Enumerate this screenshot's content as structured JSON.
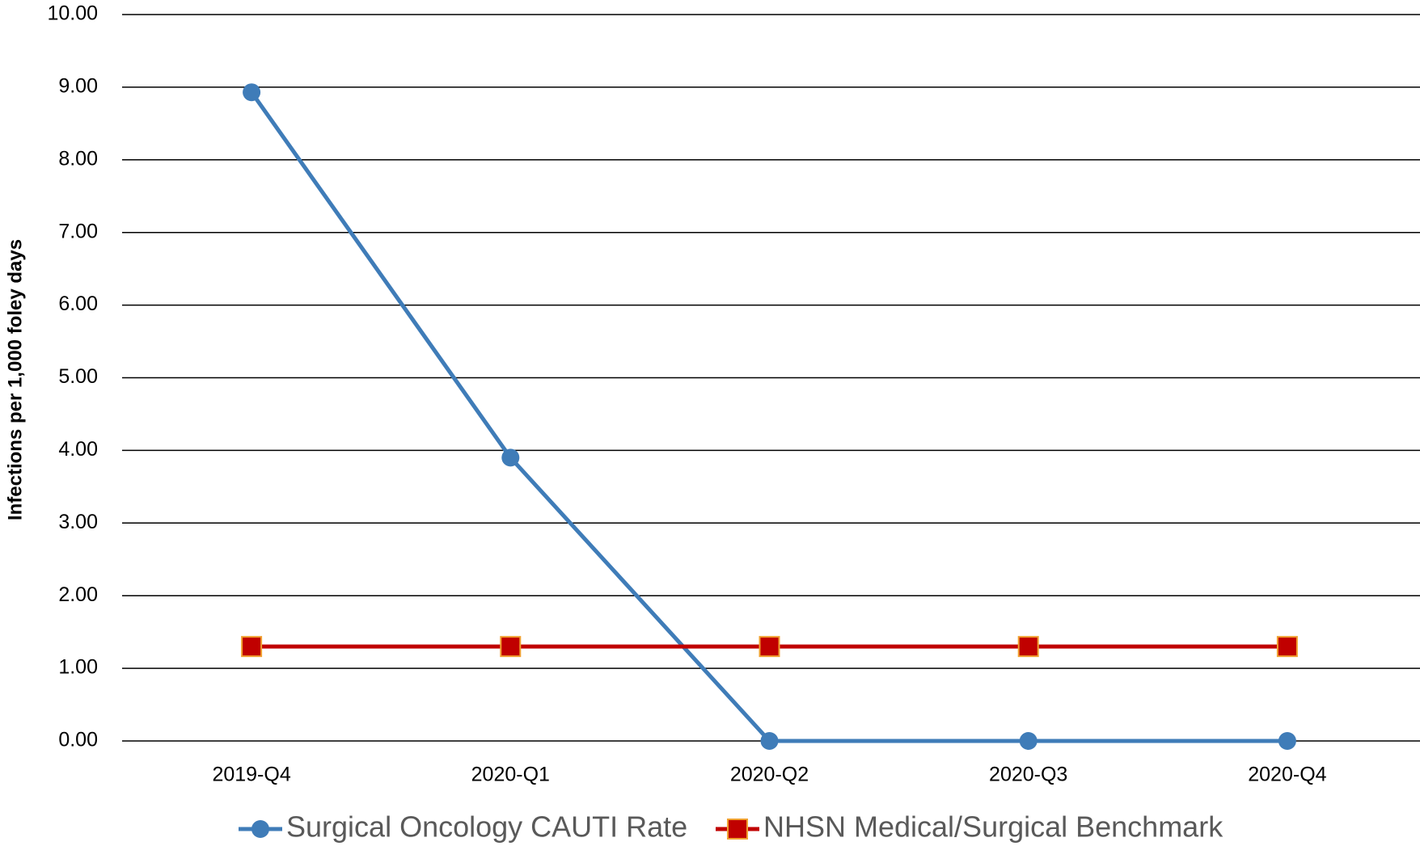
{
  "chart_data": {
    "type": "line",
    "y_label": "Infections per 1,000 foley days",
    "categories": [
      "2019-Q4",
      "2020-Q1",
      "2020-Q2",
      "2020-Q3",
      "2020-Q4"
    ],
    "series": [
      {
        "name": "Surgical Oncology CAUTI Rate",
        "color": "#3f7cb8",
        "marker": "circle",
        "values": [
          8.93,
          3.9,
          0,
          0,
          0
        ]
      },
      {
        "name": "NHSN Medical/Surgical Benchmark",
        "color": "#c00000",
        "marker": "square",
        "values": [
          1.3,
          1.3,
          1.3,
          1.3,
          1.3
        ]
      }
    ],
    "ylim": [
      0,
      10
    ],
    "yticks": [
      {
        "value": 0,
        "label": "0.00"
      },
      {
        "value": 1,
        "label": "1.00"
      },
      {
        "value": 2,
        "label": "2.00"
      },
      {
        "value": 3,
        "label": "3.00"
      },
      {
        "value": 4,
        "label": "4.00"
      },
      {
        "value": 5,
        "label": "5.00"
      },
      {
        "value": 6,
        "label": "6.00"
      },
      {
        "value": 7,
        "label": "7.00"
      },
      {
        "value": 8,
        "label": "8.00"
      },
      {
        "value": 9,
        "label": "9.00"
      },
      {
        "value": 10,
        "label": "10.00"
      }
    ],
    "grid": true,
    "legend": "bottom"
  }
}
